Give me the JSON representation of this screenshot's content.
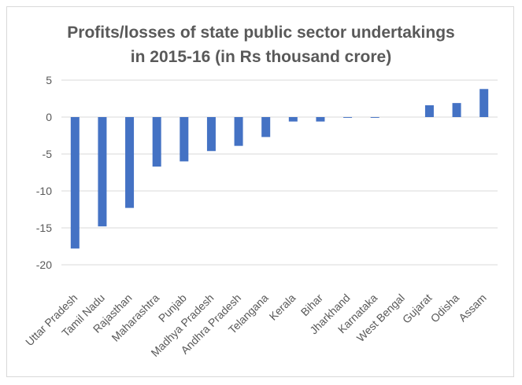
{
  "chart_data": {
    "type": "bar",
    "title_lines": [
      "Profits/losses of state public sector undertakings",
      "in 2015-16 (in Rs thousand crore)"
    ],
    "categories": [
      "Uttar Pradesh",
      "Tamil Nadu",
      "Rajasthan",
      "Maharashtra",
      "Punjab",
      "Madhya Pradesh",
      "Andhra Pradesh",
      "Telangana",
      "Kerala",
      "Bihar",
      "Jharkhand",
      "Karnataka",
      "West Bengal",
      "Gujarat",
      "Odisha",
      "Assam"
    ],
    "values": [
      -17.8,
      -14.8,
      -12.3,
      -6.7,
      -6.0,
      -4.6,
      -3.9,
      -2.7,
      -0.6,
      -0.6,
      -0.1,
      -0.1,
      0.0,
      1.6,
      1.9,
      3.8
    ],
    "yticks": [
      5,
      0,
      -5,
      -10,
      -15,
      -20
    ],
    "ylim": [
      -20,
      5
    ],
    "bar_color": "#4472c4",
    "grid_color": "#d9d9d9",
    "grid": true
  }
}
